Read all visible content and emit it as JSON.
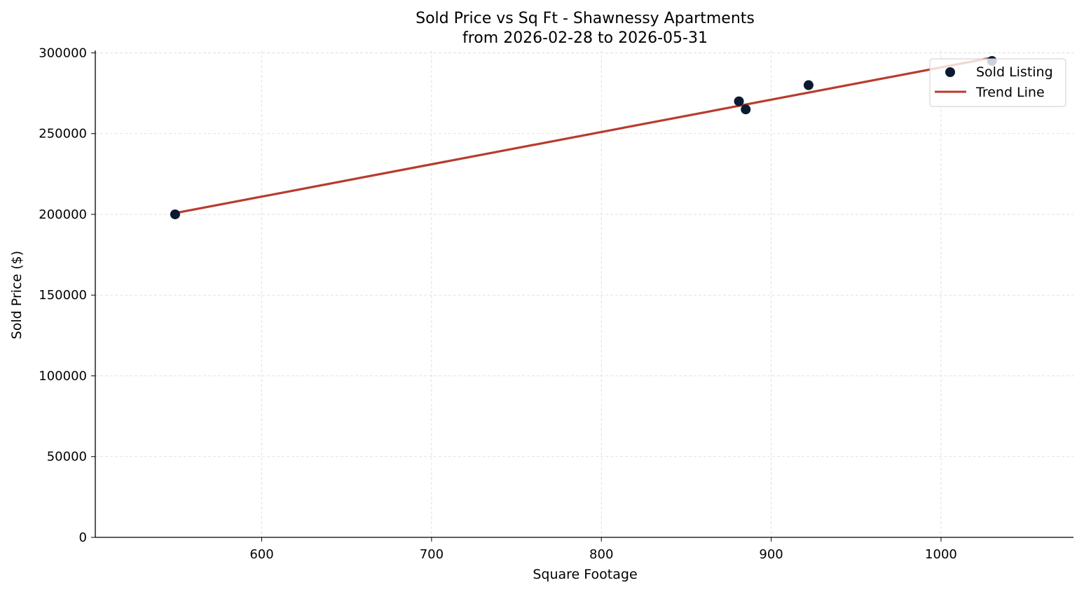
{
  "chart_data": {
    "type": "scatter",
    "title": [
      "Sold Price vs Sq Ft - Shawnessy Apartments",
      "from 2026-02-28 to 2026-05-31"
    ],
    "xlabel": "Square Footage",
    "ylabel": "Sold Price ($)",
    "xlim": [
      502,
      1078
    ],
    "ylim": [
      0,
      301500
    ],
    "x_ticks": [
      600,
      700,
      800,
      900,
      1000
    ],
    "y_ticks": [
      0,
      50000,
      100000,
      150000,
      200000,
      250000,
      300000
    ],
    "grid": true,
    "legend_position": "top-right",
    "series": [
      {
        "name": "Sold Listing",
        "kind": "scatter",
        "color": "#0b1a33",
        "points": [
          {
            "x": 549,
            "y": 200000
          },
          {
            "x": 881,
            "y": 270000
          },
          {
            "x": 885,
            "y": 265000
          },
          {
            "x": 922,
            "y": 280000
          },
          {
            "x": 1030,
            "y": 295000
          }
        ]
      },
      {
        "name": "Trend Line",
        "kind": "line",
        "color": "#b83c2e",
        "points": [
          {
            "x": 549,
            "y": 200800
          },
          {
            "x": 1030,
            "y": 297000
          }
        ]
      }
    ]
  }
}
